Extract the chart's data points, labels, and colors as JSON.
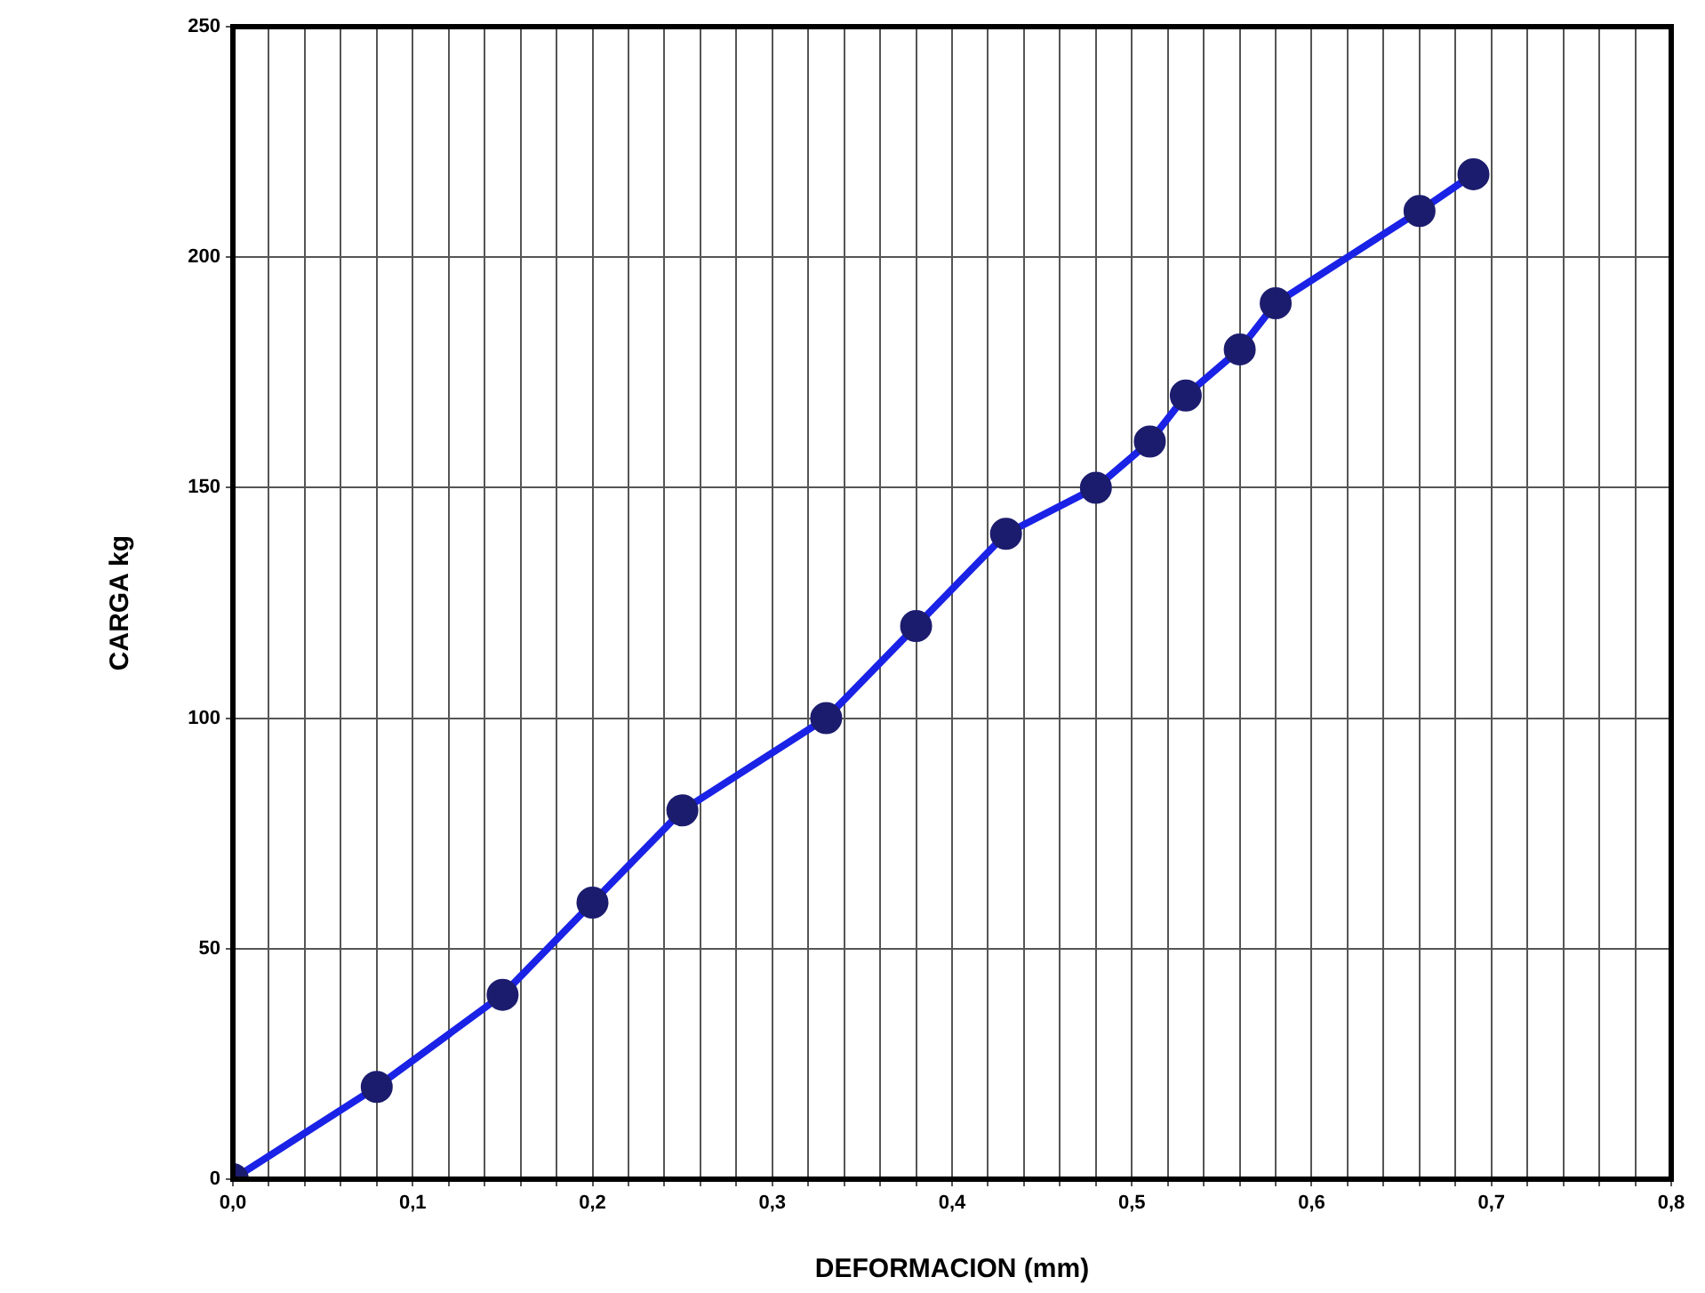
{
  "chart_data": {
    "type": "line",
    "xlabel": "DEFORMACION (mm)",
    "ylabel": "CARGA kg",
    "x": [
      0,
      0.08,
      0.15,
      0.2,
      0.25,
      0.33,
      0.38,
      0.43,
      0.48,
      0.51,
      0.53,
      0.56,
      0.58,
      0.66,
      0.69
    ],
    "series": [
      {
        "color": "#1a22e6",
        "values": [
          0,
          20,
          40,
          60,
          80,
          100,
          120,
          140,
          150,
          160,
          170,
          180,
          190,
          210,
          218
        ]
      }
    ],
    "xlim": [
      0,
      0.8
    ],
    "xticks": [
      {
        "value": 0,
        "label": "0,0"
      },
      {
        "value": 0.02,
        "label": null
      },
      {
        "value": 0.04,
        "label": null
      },
      {
        "value": 0.06,
        "label": null
      },
      {
        "value": 0.08,
        "label": null
      },
      {
        "value": 0.1,
        "label": "0,1"
      },
      {
        "value": 0.12,
        "label": null
      },
      {
        "value": 0.14,
        "label": null
      },
      {
        "value": 0.16,
        "label": null
      },
      {
        "value": 0.18,
        "label": null
      },
      {
        "value": 0.2,
        "label": "0,2"
      },
      {
        "value": 0.22,
        "label": null
      },
      {
        "value": 0.24,
        "label": null
      },
      {
        "value": 0.26,
        "label": null
      },
      {
        "value": 0.28,
        "label": null
      },
      {
        "value": 0.3,
        "label": "0,3"
      },
      {
        "value": 0.32,
        "label": null
      },
      {
        "value": 0.34,
        "label": null
      },
      {
        "value": 0.36,
        "label": null
      },
      {
        "value": 0.38,
        "label": null
      },
      {
        "value": 0.4,
        "label": "0,4"
      },
      {
        "value": 0.42,
        "label": null
      },
      {
        "value": 0.44,
        "label": null
      },
      {
        "value": 0.46,
        "label": null
      },
      {
        "value": 0.48,
        "label": null
      },
      {
        "value": 0.5,
        "label": "0,5"
      },
      {
        "value": 0.52,
        "label": null
      },
      {
        "value": 0.54,
        "label": null
      },
      {
        "value": 0.56,
        "label": null
      },
      {
        "value": 0.58,
        "label": null
      },
      {
        "value": 0.6,
        "label": "0,6"
      },
      {
        "value": 0.62,
        "label": null
      },
      {
        "value": 0.64,
        "label": null
      },
      {
        "value": 0.66,
        "label": null
      },
      {
        "value": 0.68,
        "label": null
      },
      {
        "value": 0.7,
        "label": "0,7"
      },
      {
        "value": 0.72,
        "label": null
      },
      {
        "value": 0.74,
        "label": null
      },
      {
        "value": 0.76,
        "label": null
      },
      {
        "value": 0.78,
        "label": null
      },
      {
        "value": 0.8,
        "label": "0,8"
      }
    ],
    "ylim": [
      0,
      250
    ],
    "yticks": [
      0,
      50,
      100,
      150,
      200,
      250
    ],
    "grid": true,
    "legend": false,
    "marker": "circle",
    "line_style": "solid"
  }
}
